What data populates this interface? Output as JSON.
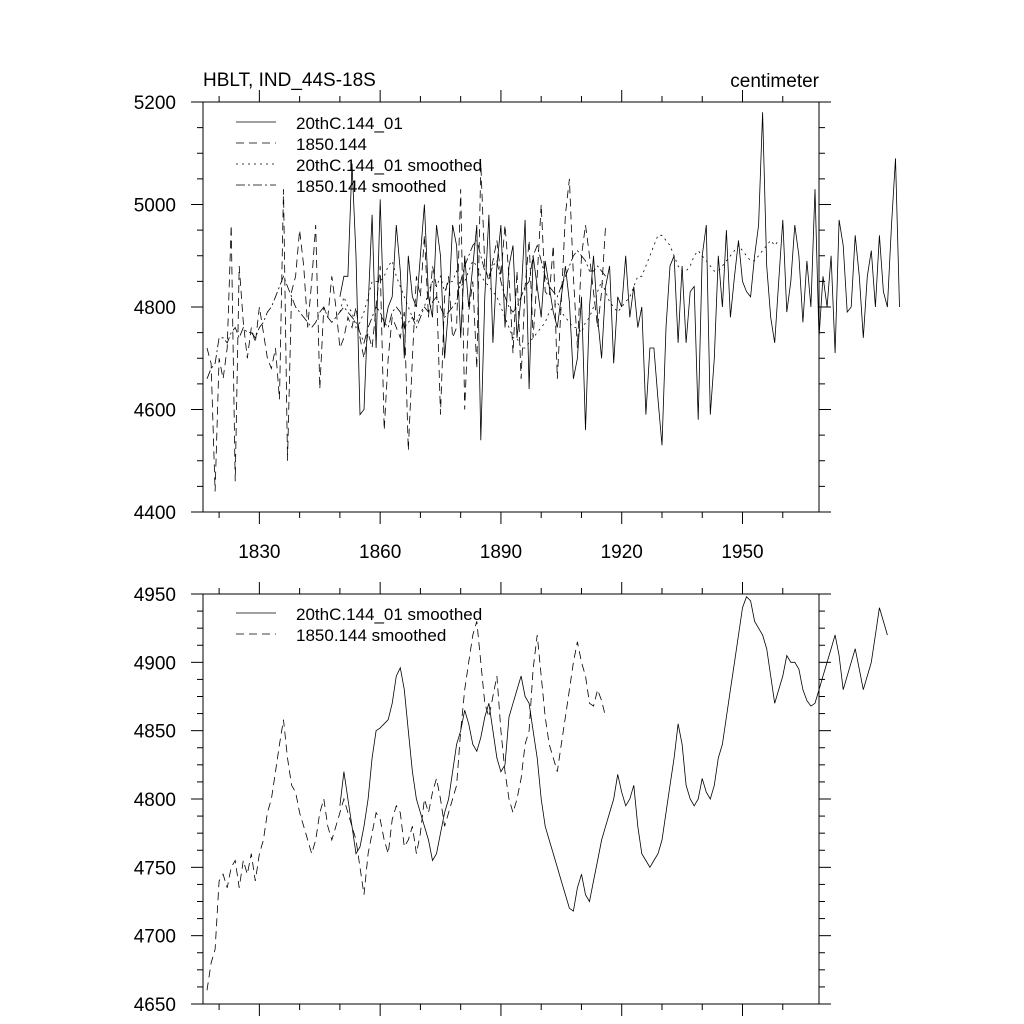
{
  "chart_data": [
    {
      "type": "line",
      "title": "HBLT, IND_44S-18S",
      "units": "centimeter",
      "xlim": [
        1816,
        1969
      ],
      "ylim": [
        4400,
        5200
      ],
      "x_ticks": [
        1830,
        1860,
        1890,
        1920,
        1950
      ],
      "y_ticks": [
        4400,
        4600,
        4800,
        5000,
        5200
      ],
      "legend": [
        "20thC.144_01",
        "1850.144",
        "20thC.144_01 smoothed",
        "1850.144 smoothed"
      ],
      "series": [
        {
          "name": "20thC.144_01",
          "style": "solid",
          "x_start": 1850,
          "values": [
            4820,
            4860,
            4860,
            5080,
            4900,
            4590,
            4600,
            4800,
            4980,
            4720,
            5010,
            4760,
            4800,
            4820,
            4960,
            4870,
            4700,
            4900,
            4820,
            4800,
            4900,
            5000,
            4820,
            4780,
            4960,
            4900,
            4700,
            4800,
            4960,
            4920,
            4740,
            4900,
            4800,
            4880,
            4960,
            4540,
            4820,
            4980,
            4730,
            4880,
            4960,
            4760,
            4880,
            4920,
            4740,
            4820,
            4970,
            4640,
            4900,
            4840,
            4780,
            4890,
            4840,
            4790,
            4760,
            4820,
            4880,
            4810,
            4660,
            4700,
            4820,
            4560,
            4800,
            4900,
            4780,
            4700,
            4840,
            4880,
            4690,
            4820,
            4800,
            4900,
            4780,
            4840,
            4760,
            4800,
            4590,
            4720,
            4720,
            4620,
            4530,
            4760,
            4880,
            4900,
            4730,
            4880,
            4730,
            4830,
            4840,
            4580,
            4900,
            4960,
            4590,
            4700,
            4900,
            4800,
            4950,
            4780,
            4860,
            4930,
            4850,
            4830,
            4820,
            4900,
            4960,
            5180,
            4880,
            4780,
            4730,
            4850,
            4970,
            4790,
            4850,
            4960,
            4900,
            4770,
            4890,
            4800,
            5030,
            4740,
            4860,
            4800,
            4900,
            4710,
            4970,
            4920,
            4790,
            4800,
            4940,
            4860,
            4740,
            4860,
            4910,
            4800,
            4940,
            4830,
            4800,
            4960,
            5090,
            4800
          ]
        },
        {
          "name": "1850.144",
          "style": "dashed",
          "x_start": 1817,
          "values": [
            4720,
            4690,
            4440,
            4700,
            4660,
            4720,
            4960,
            4460,
            4880,
            4770,
            4700,
            4760,
            4730,
            4800,
            4750,
            4700,
            4680,
            4720,
            4620,
            5030,
            4500,
            4830,
            4860,
            4950,
            4880,
            4760,
            4850,
            4960,
            4640,
            4800,
            4780,
            4860,
            4800,
            4720,
            4740,
            4780,
            4760,
            4800,
            4740,
            4700,
            4750,
            4720,
            4800,
            4880,
            4560,
            4700,
            4780,
            4760,
            4740,
            4790,
            4520,
            4700,
            4860,
            4820,
            4940,
            4780,
            4880,
            4840,
            4590,
            4820,
            4860,
            4740,
            4760,
            5030,
            4600,
            4790,
            4850,
            4680,
            5080,
            4880,
            4850,
            4890,
            4930,
            4860,
            4960,
            4860,
            4710,
            4870,
            4660,
            4840,
            4930,
            4740,
            4860,
            5000,
            4830,
            4820,
            4920,
            4660,
            4810,
            4980,
            5050,
            4860,
            4720,
            4900,
            4960,
            4900,
            4830,
            4760,
            4830,
            4960
          ]
        },
        {
          "name": "20thC.144_01 smoothed",
          "style": "dotted",
          "x_start": 1850,
          "values": [
            4790,
            4820,
            4800,
            4790,
            4760,
            4770,
            4790,
            4820,
            4850,
            4850,
            4850,
            4860,
            4880,
            4890,
            4860,
            4840,
            4820,
            4800,
            4780,
            4770,
            4790,
            4800,
            4830,
            4850,
            4840,
            4860,
            4830,
            4850,
            4850,
            4870,
            4840,
            4850,
            4870,
            4890,
            4880,
            4860,
            4850,
            4840,
            4830,
            4820,
            4800,
            4780,
            4760,
            4740,
            4740,
            4720,
            4720,
            4730,
            4740,
            4750,
            4760,
            4770,
            4790,
            4800,
            4810,
            4790,
            4780,
            4770,
            4760,
            4760,
            4750,
            4770,
            4780,
            4800,
            4830,
            4850,
            4830,
            4810,
            4800,
            4790,
            4800,
            4810,
            4820,
            4840,
            4860,
            4860,
            4880,
            4900,
            4920,
            4940,
            4940,
            4930,
            4920,
            4900,
            4880,
            4870,
            4870,
            4880,
            4900,
            4910,
            4900,
            4890,
            4880,
            4870,
            4870,
            4880,
            4890,
            4900,
            4910,
            4920,
            4910,
            4900,
            4890,
            4890,
            4900,
            4910,
            4920,
            4930,
            4920,
            4930
          ]
        },
        {
          "name": "1850.144 smoothed",
          "style": "dashdot",
          "x_start": 1817,
          "values": [
            4660,
            4680,
            4690,
            4740,
            4740,
            4730,
            4750,
            4760,
            4740,
            4760,
            4750,
            4750,
            4740,
            4760,
            4770,
            4790,
            4800,
            4820,
            4840,
            4860,
            4840,
            4820,
            4800,
            4790,
            4780,
            4770,
            4760,
            4770,
            4790,
            4800,
            4780,
            4770,
            4780,
            4790,
            4800,
            4790,
            4780,
            4770,
            4750,
            4730,
            4760,
            4780,
            4800,
            4790,
            4770,
            4760,
            4790,
            4800,
            4790,
            4760,
            4770,
            4780,
            4760,
            4780,
            4800,
            4790,
            4810,
            4820,
            4800,
            4780,
            4790,
            4800,
            4810,
            4850,
            4880,
            4900,
            4920,
            4930,
            4900,
            4870,
            4860,
            4880,
            4890,
            4850,
            4820,
            4800,
            4790,
            4800,
            4820,
            4840,
            4850,
            4900,
            4920,
            4890,
            4860,
            4840,
            4830,
            4820,
            4840,
            4860,
            4880,
            4900,
            4910,
            4900,
            4890,
            4870,
            4870,
            4880,
            4870,
            4860
          ]
        }
      ]
    },
    {
      "type": "line",
      "title": "",
      "xlim": [
        1816,
        1969
      ],
      "ylim": [
        4650,
        4950
      ],
      "y_ticks": [
        4650,
        4700,
        4750,
        4800,
        4850,
        4900,
        4950
      ],
      "legend": [
        "20thC.144_01 smoothed",
        "1850.144 smoothed"
      ],
      "series": [
        {
          "name": "20thC.144_01 smoothed",
          "style": "solid",
          "x_start": 1850,
          "values": [
            4795,
            4820,
            4800,
            4780,
            4760,
            4765,
            4780,
            4800,
            4830,
            4850,
            4852,
            4855,
            4858,
            4870,
            4890,
            4896,
            4880,
            4850,
            4820,
            4800,
            4790,
            4780,
            4770,
            4755,
            4760,
            4775,
            4790,
            4800,
            4820,
            4840,
            4850,
            4865,
            4855,
            4840,
            4835,
            4845,
            4860,
            4870,
            4850,
            4830,
            4820,
            4825,
            4860,
            4870,
            4880,
            4890,
            4875,
            4870,
            4850,
            4830,
            4800,
            4780,
            4770,
            4760,
            4750,
            4740,
            4730,
            4720,
            4718,
            4735,
            4745,
            4730,
            4725,
            4740,
            4755,
            4770,
            4780,
            4790,
            4800,
            4818,
            4805,
            4795,
            4800,
            4810,
            4780,
            4760,
            4755,
            4750,
            4755,
            4760,
            4770,
            4790,
            4810,
            4830,
            4855,
            4840,
            4810,
            4800,
            4795,
            4800,
            4815,
            4805,
            4800,
            4810,
            4830,
            4840,
            4860,
            4880,
            4900,
            4920,
            4940,
            4948,
            4945,
            4930,
            4925,
            4920,
            4910,
            4890,
            4870,
            4880,
            4890,
            4905,
            4900,
            4900,
            4895,
            4880,
            4872,
            4868,
            4870,
            4880,
            4890,
            4900,
            4910,
            4920,
            4905,
            4880,
            4890,
            4900,
            4910,
            4895,
            4880,
            4890,
            4900,
            4920,
            4940,
            4930,
            4920
          ]
        },
        {
          "name": "1850.144 smoothed",
          "style": "dashed",
          "x_start": 1817,
          "values": [
            4660,
            4680,
            4690,
            4740,
            4745,
            4735,
            4750,
            4755,
            4735,
            4755,
            4745,
            4760,
            4740,
            4760,
            4770,
            4790,
            4800,
            4820,
            4840,
            4858,
            4830,
            4810,
            4805,
            4790,
            4780,
            4770,
            4760,
            4770,
            4790,
            4800,
            4780,
            4770,
            4780,
            4790,
            4800,
            4790,
            4780,
            4770,
            4750,
            4730,
            4760,
            4775,
            4790,
            4785,
            4770,
            4760,
            4785,
            4795,
            4790,
            4765,
            4770,
            4780,
            4760,
            4775,
            4800,
            4790,
            4805,
            4815,
            4800,
            4780,
            4790,
            4800,
            4810,
            4850,
            4880,
            4900,
            4920,
            4930,
            4900,
            4870,
            4860,
            4875,
            4890,
            4850,
            4820,
            4800,
            4790,
            4800,
            4815,
            4840,
            4850,
            4895,
            4920,
            4890,
            4860,
            4840,
            4830,
            4820,
            4840,
            4860,
            4880,
            4900,
            4915,
            4900,
            4890,
            4870,
            4868,
            4880,
            4872,
            4860
          ]
        }
      ]
    }
  ]
}
